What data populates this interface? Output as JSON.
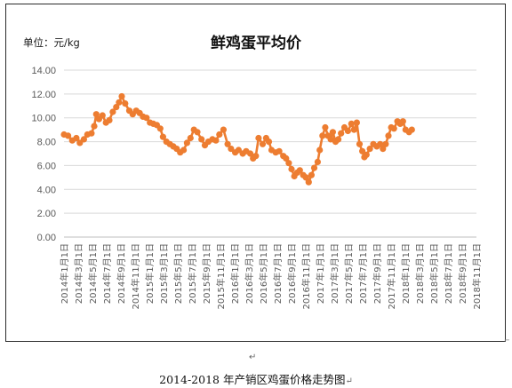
{
  "chart_data": {
    "type": "line",
    "title": "鲜鸡蛋平均价",
    "unit_label": "单位：元/kg",
    "yticks": [
      "0.00",
      "2.00",
      "4.00",
      "6.00",
      "8.00",
      "10.00",
      "12.00",
      "14.00"
    ],
    "ylim": [
      0,
      14
    ],
    "x_labels": [
      "2014年1月1日",
      "2014年3月1日",
      "2014年5月1日",
      "2014年7月1日",
      "2014年9月1日",
      "2014年11月1日",
      "2015年1月1日",
      "2015年3月1日",
      "2015年5月1日",
      "2015年7月1日",
      "2015年9月1日",
      "2015年11月1日",
      "2016年1月1日",
      "2016年3月1日",
      "2016年5月1日",
      "2016年7月1日",
      "2016年9月1日",
      "2016年11月1日",
      "2017年1月1日",
      "2017年3月1日",
      "2017年5月1日",
      "2017年7月1日",
      "2017年9月1日",
      "2017年11月1日",
      "2018年1月1日",
      "2018年3月1日",
      "2018年5月1日",
      "2018年7月1日",
      "2018年9月1日",
      "2018年11月1日"
    ],
    "x_range": [
      0,
      60
    ],
    "gridlines": true,
    "legend": "none",
    "series_color": "#ed7d31",
    "points": [
      [
        0.0,
        8.6
      ],
      [
        0.6,
        8.5
      ],
      [
        1.2,
        8.1
      ],
      [
        1.8,
        8.3
      ],
      [
        2.3,
        7.9
      ],
      [
        2.9,
        8.2
      ],
      [
        3.4,
        8.6
      ],
      [
        4.0,
        8.7
      ],
      [
        4.4,
        9.3
      ],
      [
        4.7,
        10.3
      ],
      [
        5.1,
        9.9
      ],
      [
        5.6,
        10.2
      ],
      [
        6.1,
        9.6
      ],
      [
        6.6,
        9.8
      ],
      [
        7.1,
        10.5
      ],
      [
        7.6,
        10.9
      ],
      [
        8.0,
        11.3
      ],
      [
        8.4,
        11.8
      ],
      [
        8.9,
        11.2
      ],
      [
        9.5,
        10.6
      ],
      [
        10.0,
        10.3
      ],
      [
        10.5,
        10.6
      ],
      [
        11.0,
        10.4
      ],
      [
        11.5,
        10.1
      ],
      [
        12.0,
        10.0
      ],
      [
        12.5,
        9.6
      ],
      [
        13.0,
        9.5
      ],
      [
        13.5,
        9.4
      ],
      [
        14.0,
        9.1
      ],
      [
        14.4,
        8.4
      ],
      [
        14.9,
        8.0
      ],
      [
        15.4,
        7.8
      ],
      [
        15.9,
        7.6
      ],
      [
        16.4,
        7.4
      ],
      [
        16.9,
        7.1
      ],
      [
        17.4,
        7.3
      ],
      [
        17.9,
        7.9
      ],
      [
        18.4,
        8.3
      ],
      [
        18.9,
        9.0
      ],
      [
        19.4,
        8.8
      ],
      [
        20.0,
        8.2
      ],
      [
        20.5,
        7.7
      ],
      [
        21.0,
        8.0
      ],
      [
        21.6,
        8.2
      ],
      [
        22.1,
        8.1
      ],
      [
        22.6,
        8.6
      ],
      [
        23.2,
        9.0
      ],
      [
        23.8,
        7.8
      ],
      [
        24.3,
        7.4
      ],
      [
        24.9,
        7.1
      ],
      [
        25.4,
        7.3
      ],
      [
        26.0,
        7.0
      ],
      [
        26.5,
        7.2
      ],
      [
        27.1,
        7.0
      ],
      [
        27.5,
        6.6
      ],
      [
        27.9,
        6.8
      ],
      [
        28.3,
        8.3
      ],
      [
        28.9,
        7.8
      ],
      [
        29.4,
        8.3
      ],
      [
        29.8,
        8.0
      ],
      [
        30.2,
        7.3
      ],
      [
        30.8,
        7.1
      ],
      [
        31.3,
        7.2
      ],
      [
        31.9,
        6.8
      ],
      [
        32.3,
        6.6
      ],
      [
        32.7,
        6.2
      ],
      [
        33.1,
        5.7
      ],
      [
        33.5,
        5.1
      ],
      [
        33.9,
        5.4
      ],
      [
        34.3,
        5.6
      ],
      [
        34.8,
        5.2
      ],
      [
        35.2,
        5.0
      ],
      [
        35.6,
        4.6
      ],
      [
        36.0,
        5.2
      ],
      [
        36.4,
        5.8
      ],
      [
        36.9,
        6.3
      ],
      [
        37.2,
        7.3
      ],
      [
        37.6,
        8.5
      ],
      [
        38.0,
        9.2
      ],
      [
        38.4,
        8.5
      ],
      [
        38.8,
        8.2
      ],
      [
        39.1,
        8.8
      ],
      [
        39.5,
        8.0
      ],
      [
        39.9,
        8.2
      ],
      [
        40.3,
        8.7
      ],
      [
        40.8,
        9.2
      ],
      [
        41.3,
        8.9
      ],
      [
        41.8,
        9.5
      ],
      [
        42.2,
        9.0
      ],
      [
        42.6,
        9.6
      ],
      [
        43.0,
        7.8
      ],
      [
        43.4,
        7.2
      ],
      [
        43.7,
        6.7
      ],
      [
        44.0,
        6.9
      ],
      [
        44.5,
        7.4
      ],
      [
        45.0,
        7.8
      ],
      [
        45.5,
        7.6
      ],
      [
        46.0,
        7.8
      ],
      [
        46.4,
        7.4
      ],
      [
        46.8,
        7.8
      ],
      [
        47.2,
        8.5
      ],
      [
        47.6,
        9.2
      ],
      [
        48.0,
        9.1
      ],
      [
        48.5,
        9.7
      ],
      [
        48.9,
        9.5
      ],
      [
        49.3,
        9.7
      ],
      [
        49.7,
        9.0
      ],
      [
        50.2,
        8.8
      ],
      [
        50.6,
        9.0
      ]
    ],
    "caption": "2014-2018 年产销区鸡蛋价格走势图",
    "para_mark": "↵",
    "caption_mark": "↵",
    "corner_mark": "⌐"
  }
}
